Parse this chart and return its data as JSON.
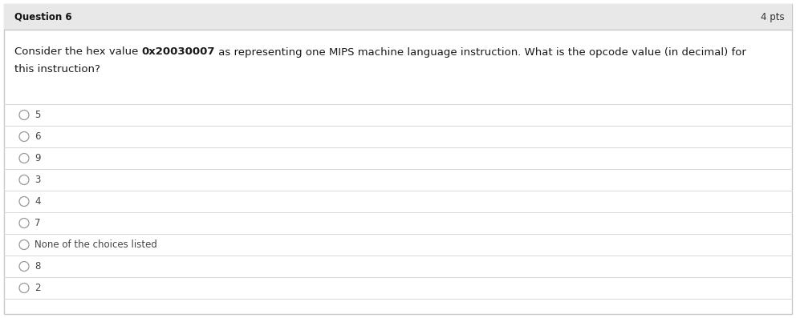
{
  "question_label": "Question 6",
  "pts_label": "4 pts",
  "question_line1_parts": [
    {
      "text": "Consider the hex value ",
      "bold": false
    },
    {
      "text": "0x20030007",
      "bold": true
    },
    {
      "text": " as representing one MIPS machine language instruction. What is the opcode value (in decimal) for",
      "bold": false
    }
  ],
  "question_line2": "this instruction?",
  "choices": [
    "5",
    "6",
    "9",
    "3",
    "4",
    "7",
    "None of the choices listed",
    "8",
    "2"
  ],
  "header_bg": "#e8e8e8",
  "body_bg": "#ffffff",
  "border_color": "#c8c8c8",
  "header_text_color": "#111111",
  "pts_text_color": "#333333",
  "question_text_color": "#1a1a1a",
  "choice_text_color": "#444444",
  "divider_color": "#d8d8d8",
  "circle_color": "#999999",
  "header_fontsize": 8.5,
  "pts_fontsize": 8.5,
  "question_fontsize": 9.5,
  "choice_fontsize": 8.5
}
